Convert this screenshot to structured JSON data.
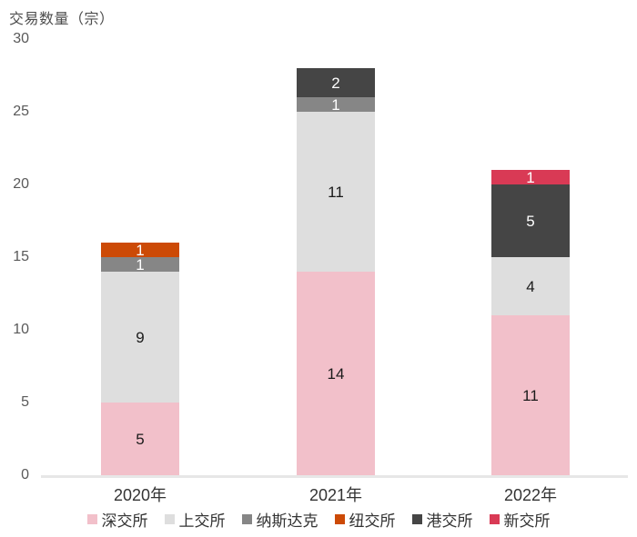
{
  "chart_data": {
    "type": "bar",
    "stacked": true,
    "title": "交易数量（宗）",
    "categories": [
      "2020年",
      "2021年",
      "2022年"
    ],
    "series": [
      {
        "name": "深交所",
        "color": "#F2C0CA",
        "label_color": "#1A1A1A",
        "values": [
          5,
          14,
          11
        ]
      },
      {
        "name": "上交所",
        "color": "#DEDEDE",
        "label_color": "#1A1A1A",
        "values": [
          9,
          11,
          4
        ]
      },
      {
        "name": "纳斯达克",
        "color": "#868686",
        "label_color": "#FFFFFF",
        "values": [
          1,
          1,
          0
        ]
      },
      {
        "name": "纽交所",
        "color": "#CC4A06",
        "label_color": "#FFFFFF",
        "values": [
          1,
          0,
          0
        ]
      },
      {
        "name": "港交所",
        "color": "#454545",
        "label_color": "#FFFFFF",
        "values": [
          0,
          2,
          5
        ]
      },
      {
        "name": "新交所",
        "color": "#D93A55",
        "label_color": "#FFFFFF",
        "values": [
          0,
          0,
          1
        ]
      }
    ],
    "y_ticks": [
      0,
      5,
      10,
      15,
      20,
      25,
      30
    ],
    "ylim": [
      0,
      30
    ],
    "grid": false,
    "legend_position": "bottom",
    "axis_line_color": "#E7E7E7",
    "tick_label_color": "#595959",
    "category_label_color": "#333333",
    "title_color": "#4D4D4D"
  }
}
